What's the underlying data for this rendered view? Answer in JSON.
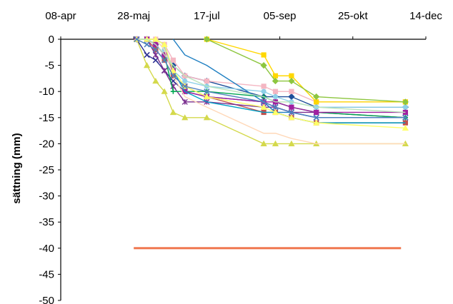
{
  "chart_data": {
    "type": "line",
    "title": "",
    "xlabel": "",
    "ylabel": "sättning (mm)",
    "x_axis_position": "top",
    "x_ticks": [
      "08-apr",
      "28-maj",
      "17-jul",
      "05-sep",
      "25-okt",
      "14-dec"
    ],
    "xlim": [
      "08-apr",
      "14-dec"
    ],
    "ylim": [
      -50,
      0
    ],
    "y_ticks": [
      0,
      -5,
      -10,
      -15,
      -20,
      -25,
      -30,
      -35,
      -40,
      -45,
      -50
    ],
    "grid": false,
    "legend": "none",
    "reference_line": {
      "y": -40,
      "x_start": "28-maj",
      "x_end": "27-nov",
      "color": "#f07850"
    },
    "series": [
      {
        "color": "#1f4e9a",
        "marker": "diamond",
        "x": [
          "30-maj",
          "06-jun",
          "12-jun",
          "18-jun",
          "24-jun",
          "02-jul",
          "17-jul",
          "25-aug",
          "02-sep",
          "13-sep",
          "30-sep",
          "30-nov"
        ],
        "y": [
          0,
          0,
          -1,
          -3,
          -5,
          -7,
          -8,
          -11,
          -11,
          -11,
          -13,
          -13
        ]
      },
      {
        "color": "#c0504d",
        "marker": "square",
        "x": [
          "30-maj",
          "06-jun",
          "12-jun",
          "18-jun",
          "24-jun",
          "02-jul",
          "17-jul",
          "25-aug",
          "02-sep",
          "13-sep",
          "30-sep",
          "30-nov"
        ],
        "y": [
          0,
          0,
          -2,
          -4,
          -7,
          -9,
          -11,
          -14,
          -14,
          -15,
          -16,
          -16
        ]
      },
      {
        "color": "#d4d94c",
        "marker": "triangle",
        "x": [
          "30-maj",
          "06-jun",
          "12-jun",
          "18-jun",
          "24-jun",
          "02-jul",
          "17-jul",
          "25-aug",
          "02-sep",
          "13-sep",
          "30-sep",
          "30-nov"
        ],
        "y": [
          0,
          -5,
          -8,
          -10,
          -14,
          -15,
          -15,
          -20,
          -20,
          -20,
          -20,
          -20
        ]
      },
      {
        "color": "#2e3192",
        "marker": "x",
        "x": [
          "30-maj",
          "06-jun",
          "12-jun",
          "18-jun",
          "24-jun",
          "02-jul",
          "17-jul",
          "25-aug",
          "02-sep",
          "13-sep",
          "30-sep",
          "30-nov"
        ],
        "y": [
          0,
          -3,
          -4,
          -6,
          -8,
          -10,
          -11,
          -12,
          -13,
          -14,
          -15,
          -15
        ]
      },
      {
        "color": "#7a2f8f",
        "marker": "star",
        "x": [
          "30-maj",
          "06-jun",
          "12-jun",
          "18-jun",
          "24-jun",
          "02-jul",
          "17-jul",
          "25-aug",
          "02-sep",
          "13-sep",
          "30-sep",
          "30-nov"
        ],
        "y": [
          0,
          0,
          -3,
          -6,
          -9,
          -12,
          -12,
          -13,
          -13,
          -14,
          -14,
          -15
        ]
      },
      {
        "color": "#8fd0e8",
        "marker": "circle",
        "x": [
          "30-maj",
          "06-jun",
          "12-jun",
          "18-jun",
          "24-jun",
          "02-jul",
          "17-jul",
          "25-aug",
          "02-sep",
          "13-sep",
          "30-sep",
          "30-nov"
        ],
        "y": [
          0,
          0,
          0,
          -2,
          -6,
          -8,
          -9,
          -10,
          -11,
          -12,
          -13,
          -13
        ]
      },
      {
        "color": "#00a651",
        "marker": "plus",
        "x": [
          "30-maj",
          "06-jun",
          "12-jun",
          "18-jun",
          "24-jun",
          "02-jul",
          "17-jul",
          "25-aug",
          "02-sep",
          "13-sep",
          "30-sep",
          "30-nov"
        ],
        "y": [
          0,
          0,
          -1,
          -3,
          -10,
          -10,
          -10,
          -11,
          -12,
          -13,
          -14,
          -15
        ]
      },
      {
        "color": "#f4b6c2",
        "marker": "square",
        "x": [
          "30-maj",
          "06-jun",
          "12-jun",
          "18-jun",
          "24-jun",
          "02-jul",
          "17-jul",
          "25-aug",
          "02-sep",
          "13-sep",
          "30-sep",
          "30-nov"
        ],
        "y": [
          0,
          0,
          0,
          -1,
          -4,
          -7,
          -8,
          -9,
          -10,
          -10,
          -12,
          -12
        ]
      },
      {
        "color": "#a020a0",
        "marker": "square",
        "x": [
          "30-maj",
          "06-jun",
          "12-jun",
          "18-jun",
          "24-jun",
          "02-jul",
          "17-jul",
          "25-aug",
          "02-sep",
          "13-sep",
          "30-sep",
          "30-nov"
        ],
        "y": [
          0,
          0,
          -1,
          -3,
          -6,
          -10,
          -11,
          -12,
          -12,
          -13,
          -14,
          -14
        ]
      },
      {
        "color": "#ffd700",
        "marker": "square",
        "x": [
          "17-jul",
          "25-aug",
          "02-sep",
          "13-sep",
          "30-sep",
          "30-nov"
        ],
        "y": [
          0,
          -3,
          -7,
          -7,
          -12,
          -12
        ]
      },
      {
        "color": "#8dc63f",
        "marker": "diamond",
        "x": [
          "17-jul",
          "25-aug",
          "02-sep",
          "13-sep",
          "30-sep",
          "30-nov"
        ],
        "y": [
          0,
          -5,
          -8,
          -8,
          -11,
          -12
        ]
      },
      {
        "color": "#1f7fc2",
        "marker": "none",
        "x": [
          "24-jun",
          "02-jul",
          "17-jul",
          "25-aug",
          "02-sep",
          "13-sep",
          "30-sep",
          "30-nov"
        ],
        "y": [
          0,
          -3,
          -5,
          -12,
          -14,
          -14,
          -15,
          -15
        ]
      },
      {
        "color": "#00a0c6",
        "marker": "none",
        "x": [
          "30-maj",
          "06-jun",
          "12-jun",
          "18-jun",
          "24-jun",
          "02-jul",
          "17-jul",
          "25-aug",
          "02-sep",
          "13-sep",
          "30-sep",
          "30-nov"
        ],
        "y": [
          0,
          0,
          0,
          -1,
          -6,
          -10,
          -12,
          -14,
          -14,
          -15,
          -16,
          -16
        ]
      },
      {
        "color": "#ffd8b8",
        "marker": "none",
        "x": [
          "30-maj",
          "06-jun",
          "12-jun",
          "18-jun",
          "24-jun",
          "02-jul",
          "17-jul",
          "25-aug",
          "02-sep",
          "13-sep",
          "30-sep",
          "30-nov"
        ],
        "y": [
          0,
          0,
          0,
          -2,
          -7,
          -11,
          -13,
          -18,
          -18,
          -19,
          -20,
          -20
        ]
      },
      {
        "color": "#ffff66",
        "marker": "triangle",
        "x": [
          "30-maj",
          "06-jun",
          "12-jun",
          "18-jun",
          "24-jun",
          "02-jul",
          "17-jul",
          "25-aug",
          "02-sep",
          "13-sep",
          "30-sep",
          "30-nov"
        ],
        "y": [
          0,
          0,
          0,
          -1,
          -6,
          -9,
          -11,
          -13,
          -14,
          -15,
          -16,
          -17
        ]
      },
      {
        "color": "#b9e3b9",
        "marker": "none",
        "x": [
          "30-maj",
          "06-jun",
          "12-jun",
          "18-jun",
          "24-jun",
          "02-jul",
          "17-jul",
          "25-aug",
          "02-sep",
          "13-sep",
          "30-sep",
          "30-nov"
        ],
        "y": [
          0,
          0,
          -1,
          -3,
          -5,
          -7,
          -9,
          -11,
          -12,
          -12,
          -13,
          -14
        ]
      },
      {
        "color": "#4f81bd",
        "marker": "x",
        "x": [
          "30-maj",
          "06-jun",
          "12-jun",
          "18-jun",
          "24-jun",
          "02-jul",
          "17-jul",
          "25-aug",
          "02-sep",
          "13-sep",
          "30-sep",
          "30-nov"
        ],
        "y": [
          0,
          -1,
          -2,
          -4,
          -7,
          -9,
          -10,
          -12,
          -13,
          -14,
          -15,
          -15
        ]
      }
    ]
  }
}
